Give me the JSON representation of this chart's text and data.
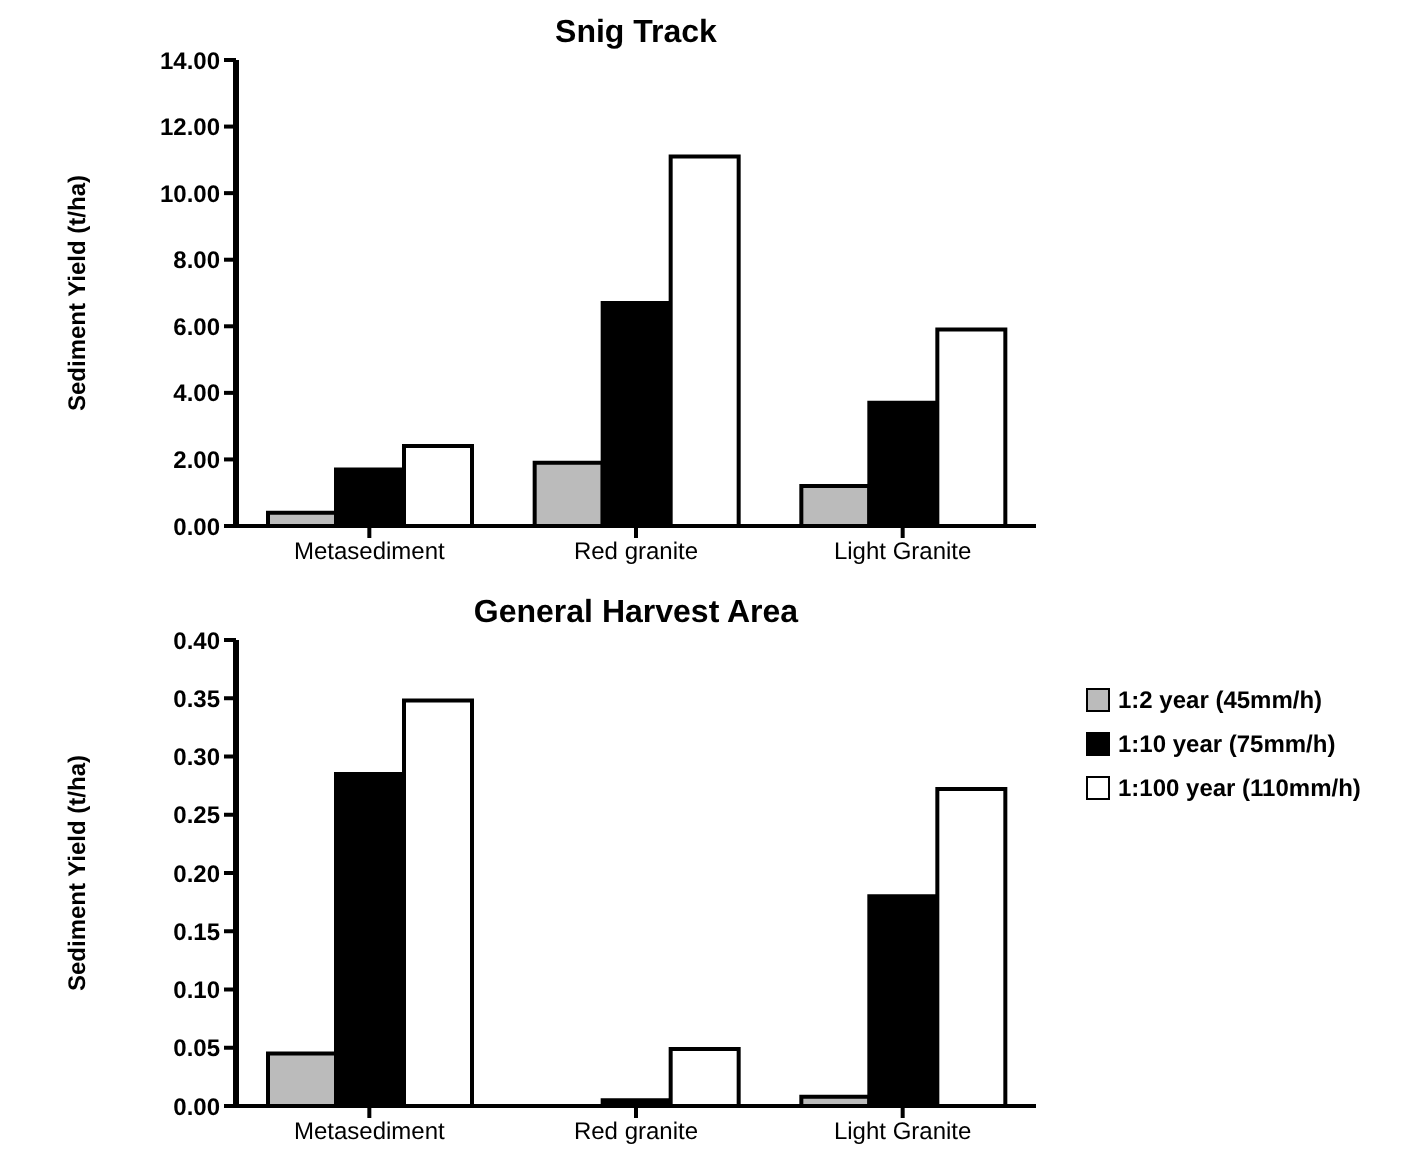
{
  "chart_data": [
    {
      "type": "bar",
      "title": "Snig Track",
      "ylabel": "Sediment Yield (t/ha)",
      "categories": [
        "Metasediment",
        "Red granite",
        "Light Granite"
      ],
      "series": [
        {
          "name": "1:2 year (45mm/h)",
          "color": "#bbbbbb",
          "values": [
            0.4,
            1.9,
            1.2
          ]
        },
        {
          "name": "1:10 year (75mm/h)",
          "color": "#000000",
          "values": [
            1.7,
            6.7,
            3.7
          ]
        },
        {
          "name": "1:100 year (110mm/h)",
          "color": "#ffffff",
          "values": [
            2.4,
            11.1,
            5.9
          ]
        }
      ],
      "ylim": [
        0,
        14
      ],
      "yticks": [
        {
          "value": 0,
          "label": "0.00"
        },
        {
          "value": 2,
          "label": "2.00"
        },
        {
          "value": 4,
          "label": "4.00"
        },
        {
          "value": 6,
          "label": "6.00"
        },
        {
          "value": 8,
          "label": "8.00"
        },
        {
          "value": 10,
          "label": "10.00"
        },
        {
          "value": 12,
          "label": "12.00"
        },
        {
          "value": 14,
          "label": "14.00"
        }
      ],
      "grid": false,
      "legend": "right"
    },
    {
      "type": "bar",
      "title": "General Harvest Area",
      "ylabel": "Sediment Yield (t/ha)",
      "categories": [
        "Metasediment",
        "Red granite",
        "Light Granite"
      ],
      "series": [
        {
          "color": "#bbbbbb",
          "values": [
            0.045,
            0,
            0.008
          ]
        },
        {
          "color": "#000000",
          "values": [
            0.285,
            0.005,
            0.18
          ]
        },
        {
          "color": "#ffffff",
          "values": [
            0.348,
            0.049,
            0.272
          ]
        }
      ],
      "ylim": [
        0,
        0.4
      ],
      "yticks": [
        {
          "value": 0,
          "label": "0.00"
        },
        {
          "value": 0.05,
          "label": "0.05"
        },
        {
          "value": 0.1,
          "label": "0.10"
        },
        {
          "value": 0.15,
          "label": "0.15"
        },
        {
          "value": 0.2,
          "label": "0.20"
        },
        {
          "value": 0.25,
          "label": "0.25"
        },
        {
          "value": 0.3,
          "label": "0.30"
        },
        {
          "value": 0.35,
          "label": "0.35"
        },
        {
          "value": 0.4,
          "label": "0.40"
        }
      ],
      "grid": false
    }
  ]
}
